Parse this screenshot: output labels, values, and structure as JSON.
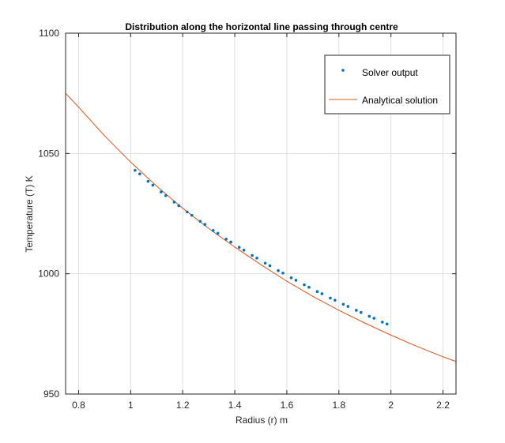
{
  "chart_data": {
    "type": "scatter+line",
    "title": "Distribution along the horizontal line passing through centre",
    "xlabel": "Radius (r) m",
    "ylabel": "Temperature (T) K",
    "xlim": [
      0.75,
      2.25
    ],
    "ylim": [
      950,
      1100
    ],
    "xticks": [
      0.8,
      1,
      1.2,
      1.4,
      1.6,
      1.8,
      2,
      2.2
    ],
    "xtick_labels": [
      "0.8",
      "1",
      "1.2",
      "1.4",
      "1.6",
      "1.8",
      "2",
      "2.2"
    ],
    "yticks": [
      950,
      1000,
      1050,
      1100
    ],
    "ytick_labels": [
      "950",
      "1000",
      "1050",
      "1100"
    ],
    "grid": true,
    "legend_position": "top-right",
    "series": [
      {
        "name": "Solver output",
        "kind": "points",
        "color": "#0072BD",
        "x": [
          1.017,
          1.035,
          1.067,
          1.085,
          1.117,
          1.135,
          1.167,
          1.185,
          1.217,
          1.235,
          1.267,
          1.285,
          1.317,
          1.335,
          1.367,
          1.385,
          1.417,
          1.435,
          1.467,
          1.485,
          1.517,
          1.535,
          1.567,
          1.585,
          1.617,
          1.635,
          1.667,
          1.685,
          1.717,
          1.735,
          1.767,
          1.785,
          1.817,
          1.835,
          1.867,
          1.885,
          1.917,
          1.935,
          1.967,
          1.985
        ],
        "y": [
          1043,
          1041.5,
          1038.4,
          1036.8,
          1034,
          1032.5,
          1029.8,
          1028.3,
          1025.7,
          1024.3,
          1021.8,
          1020.5,
          1018,
          1016.8,
          1014.4,
          1013.2,
          1011,
          1009.8,
          1007.6,
          1006.5,
          1004.4,
          1003.3,
          1001.3,
          1000.3,
          998.3,
          997.3,
          995.4,
          994.4,
          992.6,
          991.7,
          989.9,
          989,
          987.3,
          986.4,
          984.8,
          983.9,
          982.3,
          981.5,
          979.9,
          979.1
        ]
      },
      {
        "name": "Analytical solution",
        "kind": "line",
        "color": "#D95319",
        "x": [
          0.75,
          0.8,
          0.9,
          1.0,
          1.1,
          1.2,
          1.3,
          1.4,
          1.5,
          1.6,
          1.7,
          1.8,
          1.9,
          2.0,
          2.1,
          2.2,
          2.25
        ],
        "y": [
          1075,
          1069.3,
          1057.3,
          1046.4,
          1036.4,
          1027.2,
          1018.8,
          1011.1,
          1003.8,
          996.9,
          990.6,
          984.8,
          979.5,
          974.5,
          969.8,
          965.5,
          963.5
        ]
      }
    ]
  }
}
